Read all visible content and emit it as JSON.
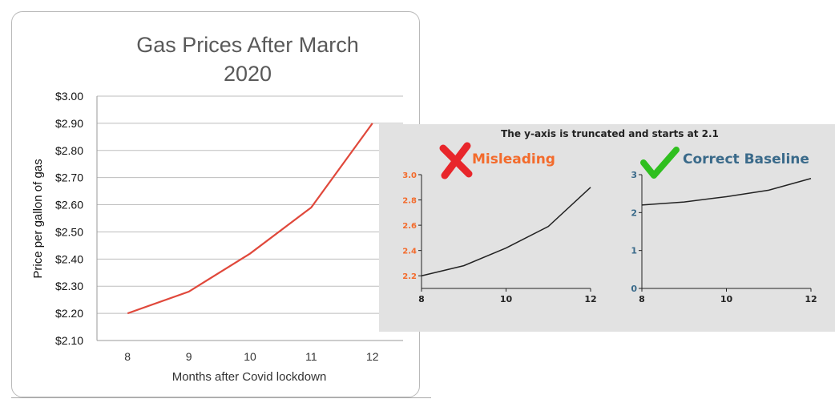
{
  "colors": {
    "main_line": "#e0483b",
    "inset_line": "#222222",
    "misleading": "#f36b2c",
    "correct": "#3a6a8a",
    "inset_bg": "#e2e2e2",
    "cross_icon": "#e8262b",
    "check_icon": "#2fbf1f"
  },
  "main_chart": {
    "title": [
      "Gas Prices After March",
      "2020"
    ],
    "xlabel": "Months after Covid lockdown",
    "ylabel": "Price per gallon of gas"
  },
  "inset": {
    "banner": "The y-axis is truncated and starts at 2.1",
    "misleading_label": "Misleading",
    "correct_label": "Correct Baseline",
    "icons": [
      "cross-icon",
      "check-icon"
    ]
  },
  "chart_data": [
    {
      "type": "line",
      "title": "Gas Prices After March 2020",
      "xlabel": "Months after Covid lockdown",
      "ylabel": "Price per gallon of gas",
      "x": [
        8,
        9,
        10,
        11,
        12
      ],
      "series": [
        {
          "values": [
            2.2,
            2.28,
            2.42,
            2.59,
            2.9
          ]
        }
      ],
      "xlim": [
        7.5,
        12.5
      ],
      "ylim": [
        2.1,
        3.0
      ],
      "xticks": [
        "8",
        "9",
        "10",
        "11",
        "12"
      ],
      "yticks": [
        "$2.10",
        "$2.20",
        "$2.30",
        "$2.40",
        "$2.50",
        "$2.60",
        "$2.70",
        "$2.80",
        "$2.90",
        "$3.00"
      ],
      "grid": true
    },
    {
      "type": "line",
      "title": "Misleading",
      "x": [
        8,
        9,
        10,
        11,
        12
      ],
      "series": [
        {
          "values": [
            2.2,
            2.28,
            2.42,
            2.59,
            2.9
          ]
        }
      ],
      "xlim": [
        8,
        12
      ],
      "ylim": [
        2.1,
        3.0
      ],
      "xticks": [
        "8",
        "10",
        "12"
      ],
      "yticks": [
        "2.2",
        "2.4",
        "2.6",
        "2.8",
        "3.0"
      ],
      "grid": false
    },
    {
      "type": "line",
      "title": "Correct Baseline",
      "x": [
        8,
        9,
        10,
        11,
        12
      ],
      "series": [
        {
          "values": [
            2.2,
            2.28,
            2.42,
            2.59,
            2.9
          ]
        }
      ],
      "xlim": [
        8,
        12
      ],
      "ylim": [
        0,
        3
      ],
      "xticks": [
        "8",
        "10",
        "12"
      ],
      "yticks": [
        "0",
        "1",
        "2",
        "3"
      ],
      "grid": false
    }
  ]
}
